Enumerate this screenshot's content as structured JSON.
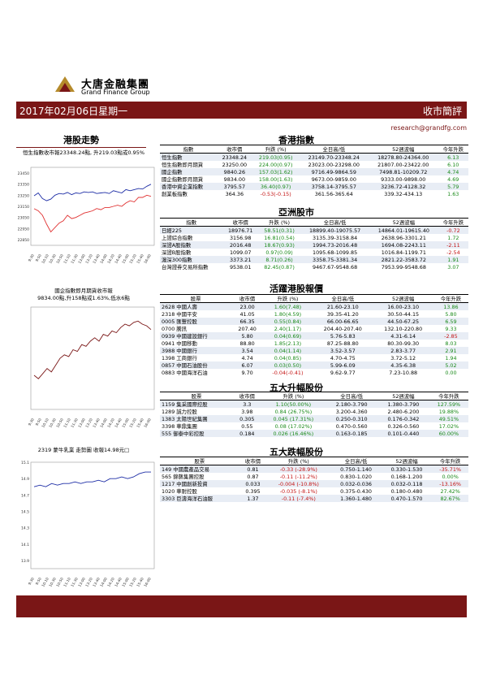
{
  "header": {
    "brand_cn": "大唐金融集團",
    "brand_en": "Grand Finance Group",
    "date": "2017年02月06日星期一",
    "report_title": "收市簡評",
    "email": "research@grandfg.com"
  },
  "left": {
    "section_title": "港股走勢",
    "chart1_caption": "恒生指數收市報23348.24點, 升219.03點或0.95%",
    "chart2_caption_l1": "國企指數即月期貨收市報",
    "chart2_caption_l2": "9834.00點,升158點或1.63%,低水6點",
    "chart3_caption": "2319 蒙牛乳業 走勢圖   收報14.98元□"
  },
  "tables": {
    "hk": {
      "title": "香港指數",
      "headers": [
        "指數",
        "收市價",
        "升跌 (%)",
        "全日高/低",
        "52週波幅",
        "今年升跌"
      ],
      "rows": [
        {
          "name": "恒生指數",
          "close": "23348.24",
          "chg": "219.03(0.95)",
          "range": "23149.70-23348.24",
          "w52": "18278.80-24364.00",
          "ytd": "6.13",
          "dir": "pos",
          "ydir": "pos"
        },
        {
          "name": "恒生指數即月期貨",
          "close": "23250.00",
          "chg": "224.00(0.97)",
          "range": "23023.00-23298.00",
          "w52": "21807.00-23422.00",
          "ytd": "6.10",
          "dir": "pos",
          "ydir": "pos"
        },
        {
          "name": "國企指數",
          "close": "9840.26",
          "chg": "157.03(1.62)",
          "range": "9716.49-9864.59",
          "w52": "7498.81-10209.72",
          "ytd": "4.74",
          "dir": "pos",
          "ydir": "pos"
        },
        {
          "name": "國企指數即月期貨",
          "close": "9834.00",
          "chg": "158.00(1.63)",
          "range": "9673.00-9859.00",
          "w52": "9333.00-9898.00",
          "ytd": "4.69",
          "dir": "pos",
          "ydir": "pos"
        },
        {
          "name": "香港中資企業指數",
          "close": "3795.57",
          "chg": "36.40(0.97)",
          "range": "3758.14-3795.57",
          "w52": "3236.72-4128.32",
          "ytd": "5.79",
          "dir": "pos",
          "ydir": "pos"
        },
        {
          "name": "創業板指數",
          "close": "364.36",
          "chg": "-0.53(-0.15)",
          "range": "361.56-365.64",
          "w52": "339.32-434.13",
          "ytd": "1.63",
          "dir": "neg",
          "ydir": "pos"
        }
      ]
    },
    "asia": {
      "title": "亞洲股市",
      "headers": [
        "指數",
        "收市價",
        "升跌 (%)",
        "全日高/低",
        "52週波幅",
        "今年升跌"
      ],
      "rows": [
        {
          "name": "日經225",
          "close": "18976.71",
          "chg": "58.51(0.31)",
          "range": "18899.40-19075.57",
          "w52": "14864.01-19615.40",
          "ytd": "-0.72",
          "dir": "pos",
          "ydir": "neg"
        },
        {
          "name": "上證綜合指數",
          "close": "3156.98",
          "chg": "16.81(0.54)",
          "range": "3135.39-3158.84",
          "w52": "2638.96-3301.21",
          "ytd": "1.72",
          "dir": "pos",
          "ydir": "pos"
        },
        {
          "name": "深證A股指數",
          "close": "2016.48",
          "chg": "18.67(0.93)",
          "range": "1994.73-2016.48",
          "w52": "1694.08-2243.11",
          "ytd": "-2.11",
          "dir": "pos",
          "ydir": "neg"
        },
        {
          "name": "深證B股指數",
          "close": "1099.07",
          "chg": "0.97(0.09)",
          "range": "1095.68-1099.85",
          "w52": "1016.84-1199.71",
          "ytd": "-2.54",
          "dir": "pos",
          "ydir": "neg"
        },
        {
          "name": "滬深300指數",
          "close": "3373.21",
          "chg": "8.71(0.26)",
          "range": "3358.75-3381.34",
          "w52": "2821.22-3583.72",
          "ytd": "1.91",
          "dir": "pos",
          "ydir": "pos"
        },
        {
          "name": "台灣證券交易所指數",
          "close": "9538.01",
          "chg": "82.45(0.87)",
          "range": "9467.67-9548.68",
          "w52": "7953.99-9548.68",
          "ytd": "3.07",
          "dir": "pos",
          "ydir": "pos"
        }
      ]
    },
    "active": {
      "title": "活躍港股報價",
      "headers": [
        "股票",
        "收市價",
        "升跌 (%)",
        "全日高/低",
        "52週波幅",
        "今年升跌"
      ],
      "rows": [
        {
          "name": "2628 中國人壽",
          "close": "23.00",
          "chg": "1.60(7.48)",
          "range": "21.60-23.10",
          "w52": "16.00-23.10",
          "ytd": "13.86",
          "dir": "pos",
          "ydir": "pos"
        },
        {
          "name": "2318 中國平安",
          "close": "41.05",
          "chg": "1.80(4.59)",
          "range": "39.35-41.20",
          "w52": "30.50-44.15",
          "ytd": "5.80",
          "dir": "pos",
          "ydir": "pos"
        },
        {
          "name": "0005 匯豐控股",
          "close": "66.35",
          "chg": "0.55(0.84)",
          "range": "66.00-66.65",
          "w52": "44.50-67.25",
          "ytd": "6.59",
          "dir": "pos",
          "ydir": "pos"
        },
        {
          "name": "0700 騰訊",
          "close": "207.40",
          "chg": "2.40(1.17)",
          "range": "204.40-207.40",
          "w52": "132.10-220.80",
          "ytd": "9.33",
          "dir": "pos",
          "ydir": "pos"
        },
        {
          "name": "0939 中國建設銀行",
          "close": "5.80",
          "chg": "0.04(0.69)",
          "range": "5.76-5.83",
          "w52": "4.31-6.14",
          "ytd": "-2.85",
          "dir": "pos",
          "ydir": "neg"
        },
        {
          "name": "0941 中國移動",
          "close": "88.80",
          "chg": "1.85(2.13)",
          "range": "87.25-88.80",
          "w52": "80.30-99.30",
          "ytd": "8.03",
          "dir": "pos",
          "ydir": "pos"
        },
        {
          "name": "3988 中國銀行",
          "close": "3.54",
          "chg": "0.04(1.14)",
          "range": "3.52-3.57",
          "w52": "2.83-3.77",
          "ytd": "2.91",
          "dir": "pos",
          "ydir": "pos"
        },
        {
          "name": "1398 工商銀行",
          "close": "4.74",
          "chg": "0.04(0.85)",
          "range": "4.70-4.75",
          "w52": "3.72-5.12",
          "ytd": "1.94",
          "dir": "pos",
          "ydir": "pos"
        },
        {
          "name": "0857 中國石油股份",
          "close": "6.07",
          "chg": "0.03(0.50)",
          "range": "5.99-6.09",
          "w52": "4.35-6.38",
          "ytd": "5.02",
          "dir": "pos",
          "ydir": "pos"
        },
        {
          "name": "0883 中國海洋石油",
          "close": "9.70",
          "chg": "-0.04(-0.41)",
          "range": "9.62-9.77",
          "w52": "7.23-10.88",
          "ytd": "0.00",
          "dir": "neg",
          "ydir": "pos"
        }
      ]
    },
    "gainers": {
      "title": "五大升幅股份",
      "headers": [
        "股票",
        "收市價",
        "升跌 (%)",
        "全日高/低",
        "52週波幅",
        "今年升跌"
      ],
      "rows": [
        {
          "name": "1159 集采國際控股",
          "close": "3.3",
          "chg": "1.10(50.00%)",
          "range": "2.180-3.790",
          "w52": "1.380-3.790",
          "ytd": "127.59%",
          "dir": "pos",
          "ydir": "pos"
        },
        {
          "name": "1289 誠力控股",
          "close": "3.98",
          "chg": "0.84 (26.75%)",
          "range": "3.200-4.360",
          "w52": "2.480-6.200",
          "ytd": "19.88%",
          "dir": "pos",
          "ydir": "pos"
        },
        {
          "name": "1383 太陽世紀集團",
          "close": "0.305",
          "chg": "0.045 (17.31%)",
          "range": "0.250-0.310",
          "w52": "0.176-0.342",
          "ytd": "49.51%",
          "dir": "pos",
          "ydir": "pos"
        },
        {
          "name": "3398 華鼎集團",
          "close": "0.55",
          "chg": "0.08 (17.02%)",
          "range": "0.470-0.560",
          "w52": "0.326-0.560",
          "ytd": "17.02%",
          "dir": "pos",
          "ydir": "pos"
        },
        {
          "name": "555 御泰中彩控股",
          "close": "0.184",
          "chg": "0.026 (16.46%)",
          "range": "0.163-0.185",
          "w52": "0.101-0.440",
          "ytd": "60.00%",
          "dir": "pos",
          "ydir": "pos"
        }
      ]
    },
    "losers": {
      "title": "五大跌幅股份",
      "headers": [
        "股票",
        "收市價",
        "升跌 (%)",
        "全日高/低",
        "52週波幅",
        "今年升跌"
      ],
      "rows": [
        {
          "name": "149 中國農產品交易",
          "close": "0.81",
          "chg": "-0.33 (-28.9%)",
          "range": "0.750-1.140",
          "w52": "0.330-1.530",
          "ytd": "-35.71%",
          "dir": "neg",
          "ydir": "neg"
        },
        {
          "name": "565 錦藝集團控股",
          "close": "0.87",
          "chg": "-0.11 (-11.2%)",
          "range": "0.830-1.020",
          "w52": "0.168-1.200",
          "ytd": "0.00%",
          "dir": "neg",
          "ydir": "pos"
        },
        {
          "name": "1217 中國創新投資",
          "close": "0.033",
          "chg": "-0.004 (-10.8%)",
          "range": "0.032-0.036",
          "w52": "0.032-0.118",
          "ytd": "-13.16%",
          "dir": "neg",
          "ydir": "neg"
        },
        {
          "name": "1020 華耐控股",
          "close": "0.395",
          "chg": "-0.035 (-8.1%)",
          "range": "0.375-0.430",
          "w52": "0.180-0.480",
          "ytd": "27.42%",
          "dir": "neg",
          "ydir": "pos"
        },
        {
          "name": "3303 巨濤海洋石油服",
          "close": "1.37",
          "chg": "-0.11 (-7.4%)",
          "range": "1.360-1.480",
          "w52": "0.470-1.570",
          "ytd": "82.67%",
          "dir": "neg",
          "ydir": "pos"
        }
      ]
    }
  },
  "chart_data": [
    {
      "type": "line",
      "title": "恒生指數收市報23348.24點, 升219.03點或0.95%",
      "ylim": [
        22800,
        23500
      ],
      "yticks": [
        "23450",
        "23350",
        "23250",
        "23150",
        "23050",
        "22950",
        "22850"
      ],
      "xticks": [
        "9:30",
        "9:50",
        "10:10",
        "10:30",
        "10:50",
        "11:10",
        "11:30",
        "13:00",
        "13:20",
        "13:40",
        "14:00",
        "14:20",
        "14:40",
        "15:00",
        "15:20",
        "15:40",
        "16:00"
      ],
      "series": [
        {
          "color": "#1e2ea6",
          "values": [
            23245,
            23270,
            23220,
            23200,
            23215,
            23250,
            23265,
            23260,
            23275,
            23255,
            23270,
            23265,
            23280,
            23275,
            23280,
            23265,
            23270,
            23275,
            23265,
            23290,
            23280,
            23270,
            23300,
            23290,
            23300,
            23310,
            23305,
            23330,
            23348
          ]
        },
        {
          "color": "#e03030",
          "values": [
            23129,
            23110,
            23070,
            22990,
            22920,
            22960,
            23000,
            23020,
            23070,
            23040,
            23050,
            23070,
            23090,
            23100,
            23110,
            23130,
            23120,
            23140,
            23140,
            23150,
            23160,
            23150,
            23180,
            23200,
            23190,
            23230,
            23230,
            23250,
            23240
          ]
        }
      ]
    },
    {
      "type": "line",
      "title": "國企指數即月期貨收市報 9834.00點,升158點或1.63%,低水6點",
      "ylim": [
        9600,
        9900
      ],
      "yticks": [],
      "xticks": [
        "9:30",
        "9:50",
        "10:10",
        "10:30",
        "10:50",
        "11:10",
        "11:30",
        "13:00",
        "13:20",
        "13:40",
        "14:00",
        "14:20",
        "14:40",
        "15:00",
        "15:20",
        "15:40",
        "16:00"
      ],
      "series": [
        {
          "color": "#7a1616",
          "values": [
            9700,
            9690,
            9705,
            9720,
            9710,
            9730,
            9750,
            9760,
            9755,
            9775,
            9770,
            9790,
            9785,
            9800,
            9810,
            9800,
            9820,
            9815,
            9830,
            9825,
            9840,
            9850,
            9845,
            9855,
            9859,
            9850,
            9845,
            9834
          ]
        }
      ]
    },
    {
      "type": "line",
      "title": "2319 蒙牛乳業 走勢圖   收報14.98元□",
      "ylim": [
        13.8,
        15.1
      ],
      "yticks": [
        "15.1",
        "14.9",
        "14.7",
        "14.5",
        "14.3",
        "14.1",
        "13.9"
      ],
      "xticks": [
        "9:30",
        "9:50",
        "10:10",
        "10:30",
        "10:50",
        "11:10",
        "11:30",
        "13:00",
        "13:20",
        "13:40",
        "14:00",
        "14:20",
        "14:40",
        "15:00",
        "15:20",
        "15:40",
        "16:00"
      ],
      "series": [
        {
          "color": "#1e2ea6",
          "values": [
            14.8,
            14.82,
            14.8,
            14.84,
            14.82,
            14.84,
            14.84,
            14.86,
            14.84,
            14.86,
            14.86,
            14.88,
            14.86,
            14.9,
            14.9,
            14.92,
            14.9,
            14.92,
            14.96,
            14.98,
            14.98
          ]
        }
      ]
    }
  ]
}
